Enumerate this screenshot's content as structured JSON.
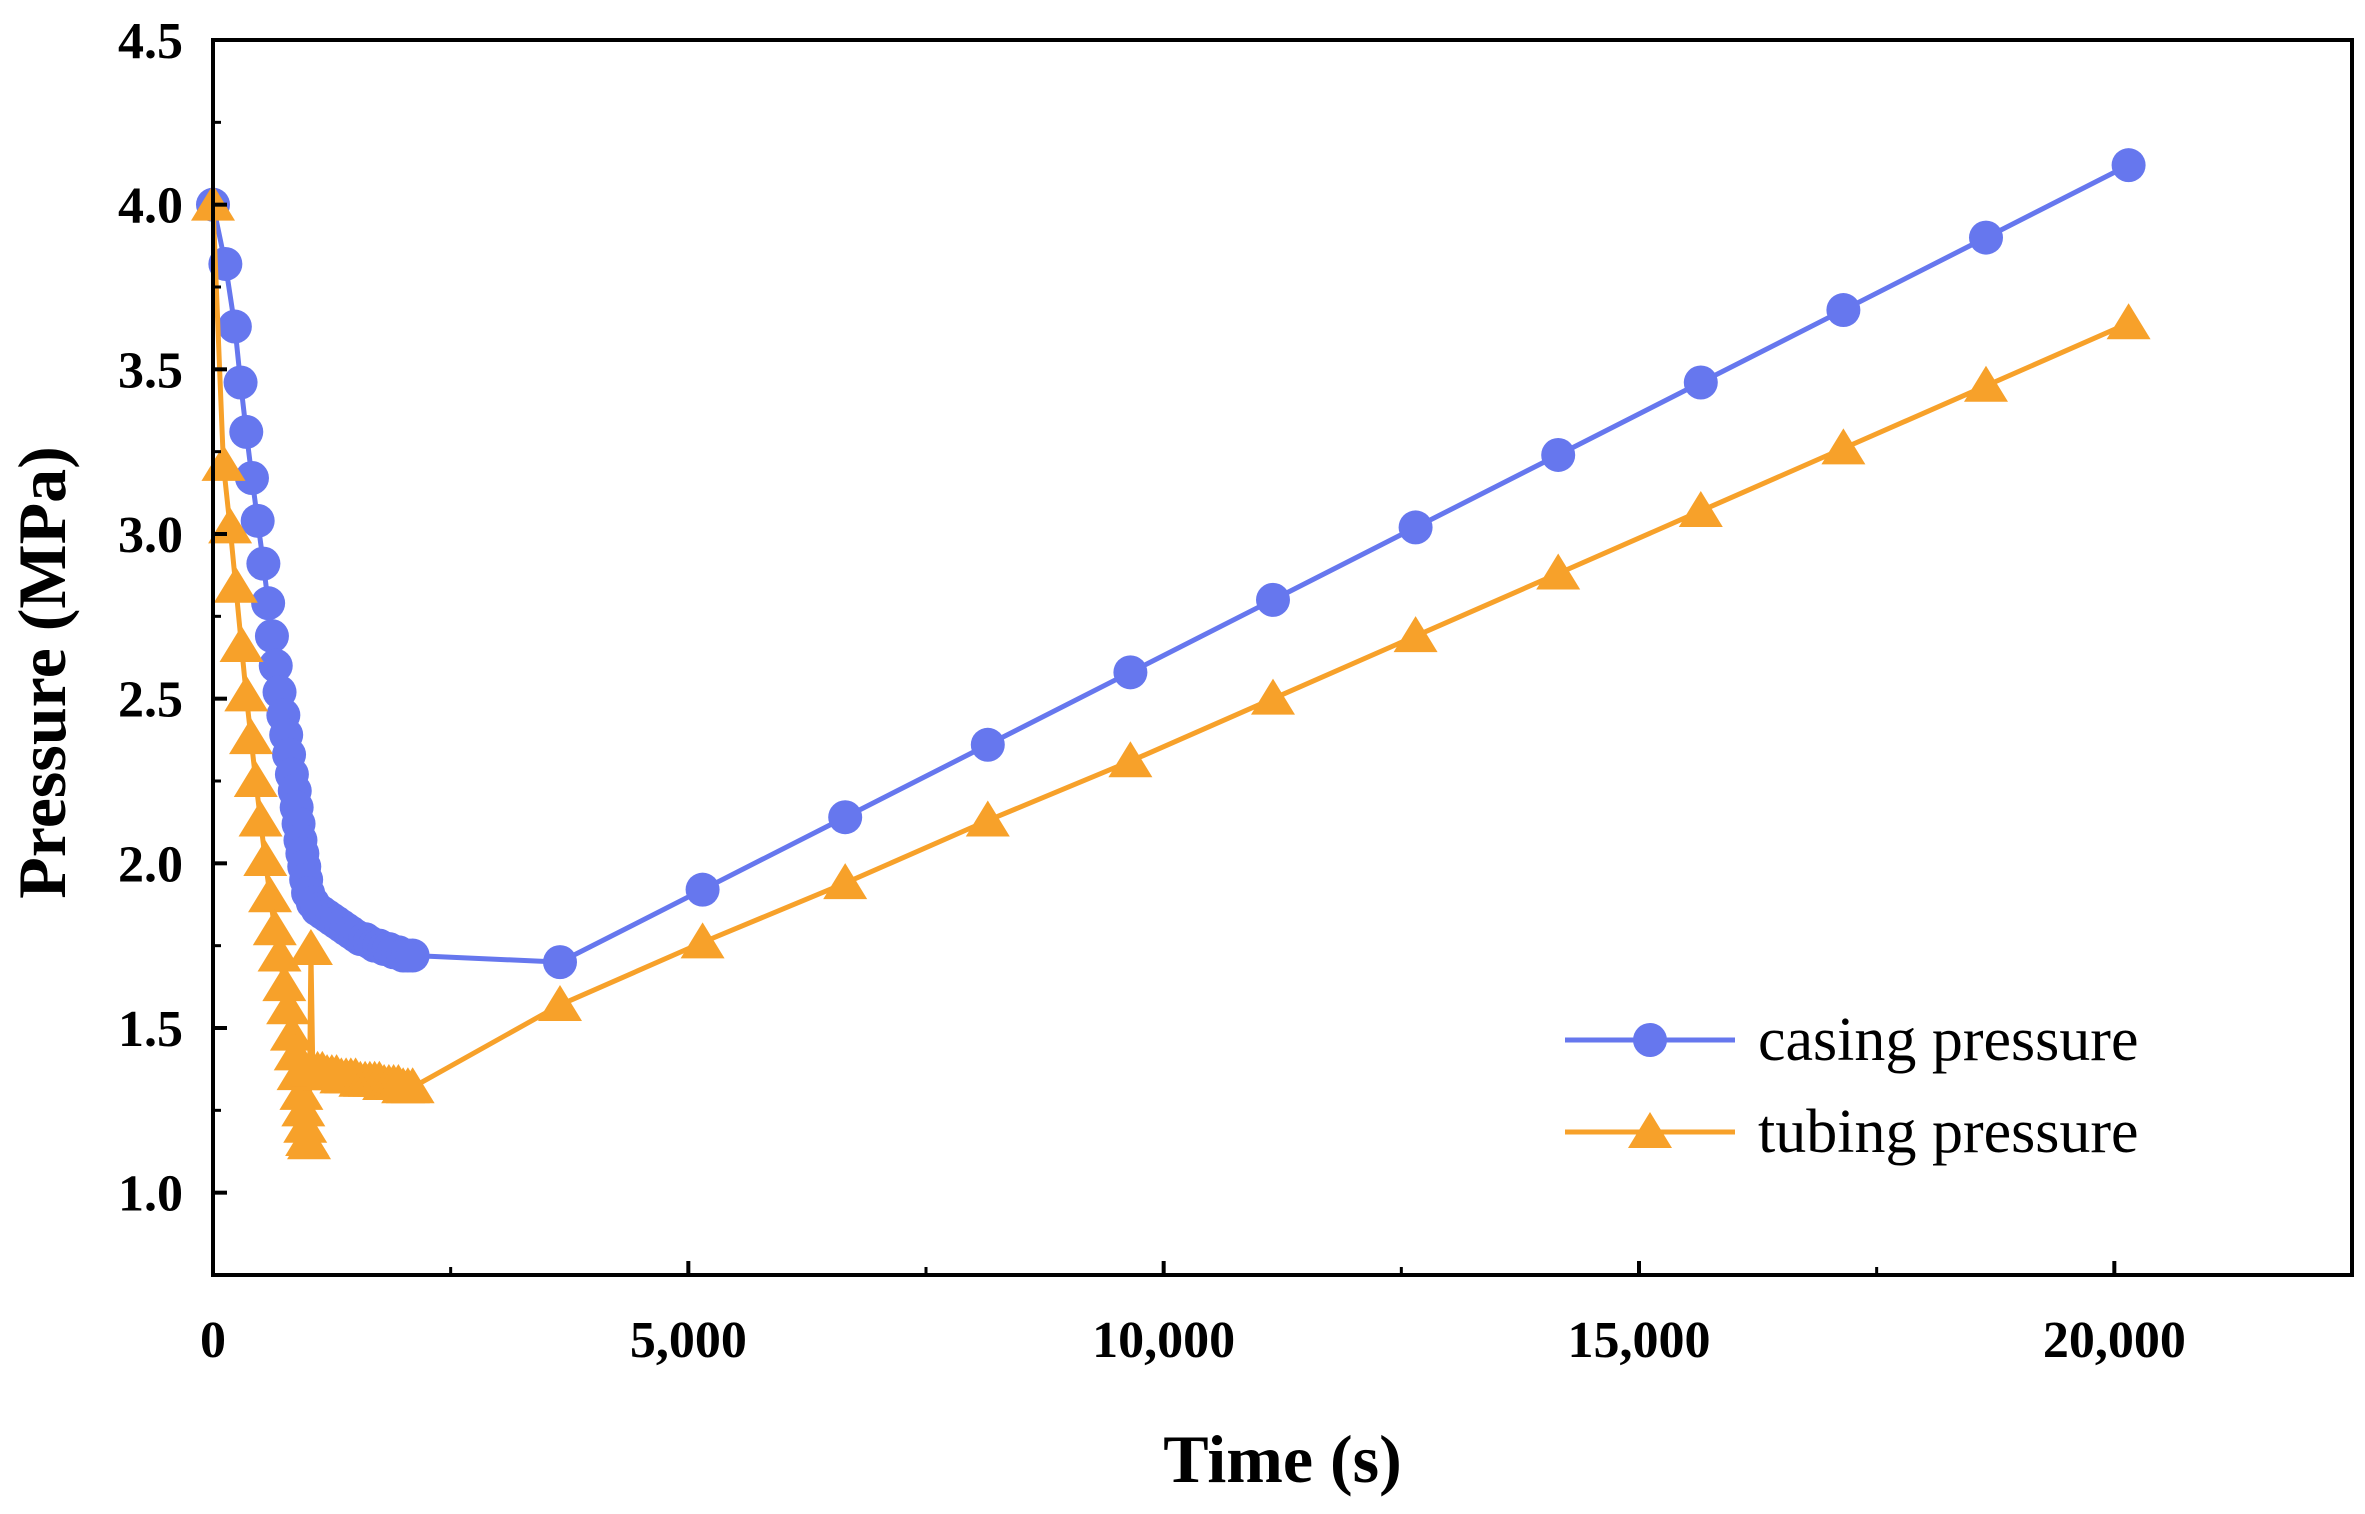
{
  "chart_data": {
    "type": "line",
    "xlabel": "Time (s)",
    "ylabel": "Pressure (MPa)",
    "xlim": [
      0,
      22500
    ],
    "ylim": [
      0.75,
      4.5
    ],
    "x_ticks": [
      0,
      5000,
      10000,
      15000,
      20000
    ],
    "x_tick_labels": [
      "0",
      "5,000",
      "10,000",
      "15,000",
      "20,000"
    ],
    "y_ticks": [
      1.0,
      1.5,
      2.0,
      2.5,
      3.0,
      3.5,
      4.0,
      4.5
    ],
    "y_tick_labels": [
      "1.0",
      "1.5",
      "2.0",
      "2.5",
      "3.0",
      "3.5",
      "4.0",
      "4.5"
    ],
    "grid": false,
    "legend_position": "bottom-right",
    "series": [
      {
        "name": "casing pressure",
        "color": "#6677ee",
        "marker": "circle",
        "x": [
          0,
          130,
          230,
          290,
          350,
          410,
          470,
          530,
          580,
          620,
          660,
          700,
          740,
          770,
          800,
          830,
          860,
          880,
          900,
          920,
          940,
          960,
          980,
          1000,
          1050,
          1100,
          1150,
          1200,
          1250,
          1300,
          1350,
          1400,
          1450,
          1500,
          1550,
          1600,
          1650,
          1700,
          1750,
          1800,
          1850,
          1900,
          1950,
          2000,
          2050,
          2100,
          3650,
          5150,
          6650,
          8150,
          9650,
          11150,
          12650,
          14150,
          15650,
          17150,
          18650,
          20150
        ],
        "y": [
          4.0,
          3.82,
          3.63,
          3.46,
          3.31,
          3.17,
          3.04,
          2.91,
          2.79,
          2.69,
          2.6,
          2.52,
          2.45,
          2.39,
          2.33,
          2.27,
          2.22,
          2.17,
          2.12,
          2.07,
          2.03,
          1.99,
          1.95,
          1.91,
          1.88,
          1.86,
          1.85,
          1.84,
          1.83,
          1.82,
          1.81,
          1.8,
          1.79,
          1.78,
          1.77,
          1.77,
          1.76,
          1.75,
          1.75,
          1.74,
          1.74,
          1.73,
          1.73,
          1.72,
          1.72,
          1.72,
          1.7,
          1.92,
          2.14,
          2.36,
          2.58,
          2.8,
          3.02,
          3.24,
          3.46,
          3.68,
          3.9,
          4.12
        ]
      },
      {
        "name": "tubing pressure",
        "color": "#f7a12a",
        "marker": "triangle",
        "x": [
          0,
          110,
          180,
          240,
          300,
          350,
          400,
          450,
          500,
          550,
          600,
          650,
          700,
          750,
          790,
          830,
          870,
          900,
          930,
          950,
          970,
          990,
          1010,
          1030,
          1050,
          1100,
          1150,
          1200,
          1250,
          1300,
          1350,
          1400,
          1450,
          1500,
          1550,
          1600,
          1650,
          1700,
          1750,
          1800,
          1850,
          1900,
          1950,
          2000,
          2050,
          2100,
          3650,
          5150,
          6650,
          8150,
          9650,
          11150,
          12650,
          14150,
          15650,
          17150,
          18650,
          20150
        ],
        "y": [
          4.0,
          3.21,
          3.02,
          2.84,
          2.66,
          2.51,
          2.38,
          2.25,
          2.13,
          2.01,
          1.9,
          1.8,
          1.72,
          1.63,
          1.56,
          1.48,
          1.42,
          1.36,
          1.3,
          1.25,
          1.2,
          1.16,
          1.15,
          1.74,
          1.37,
          1.37,
          1.37,
          1.36,
          1.36,
          1.36,
          1.35,
          1.35,
          1.35,
          1.35,
          1.34,
          1.34,
          1.34,
          1.34,
          1.34,
          1.33,
          1.33,
          1.33,
          1.33,
          1.32,
          1.32,
          1.32,
          1.57,
          1.76,
          1.94,
          2.13,
          2.31,
          2.5,
          2.69,
          2.88,
          3.07,
          3.26,
          3.45,
          3.64
        ]
      }
    ]
  }
}
